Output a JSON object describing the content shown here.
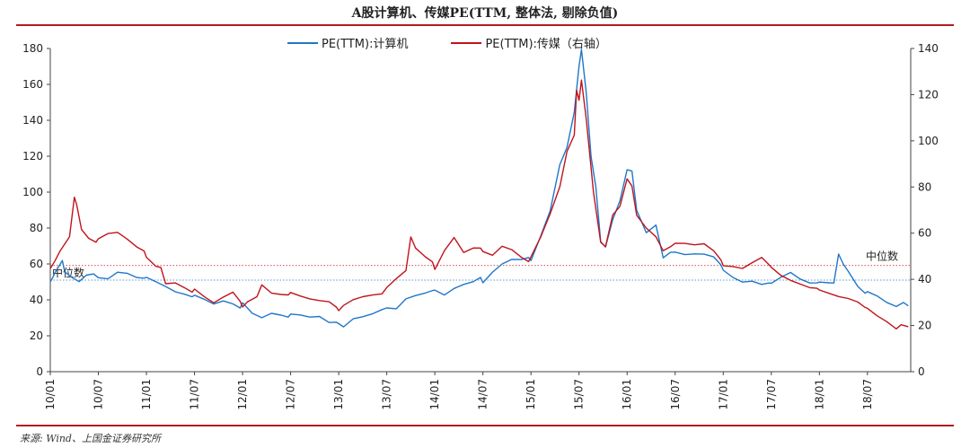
{
  "title": "A股计算机、传媒PE(TTM, 整体法, 剔除负值)",
  "source": "来源: Wind、上国金证券研究所",
  "colors": {
    "computer": "#1f77c8",
    "media": "#c0141c",
    "rule": "#b31c22"
  },
  "chart_data": {
    "type": "line",
    "title": "A股计算机、传媒PE(TTM, 整体法, 剔除负值)",
    "x": [
      "10/01",
      "10/07",
      "11/01",
      "11/07",
      "12/01",
      "12/07",
      "13/01",
      "13/07",
      "14/01",
      "14/07",
      "15/01",
      "15/07",
      "16/01",
      "16/07",
      "17/01",
      "17/07",
      "18/01",
      "18/07"
    ],
    "tick_labels": [
      "10/01",
      "10/07",
      "11/01",
      "11/07",
      "12/01",
      "12/07",
      "13/01",
      "13/07",
      "14/01",
      "14/07",
      "15/01",
      "15/07",
      "16/01",
      "16/07",
      "17/01",
      "17/07",
      "18/01",
      "18/07"
    ],
    "y_left": {
      "min": 0,
      "max": 180,
      "step": 20,
      "ticks": [
        "0",
        "20",
        "40",
        "60",
        "80",
        "100",
        "120",
        "140",
        "160",
        "180"
      ]
    },
    "y_right": {
      "min": 0,
      "max": 140,
      "step": 20,
      "ticks": [
        "0",
        "20",
        "40",
        "60",
        "80",
        "100",
        "120",
        "140"
      ]
    },
    "series": [
      {
        "name": "PE(TTM):计算机",
        "axis": "left",
        "color": "#1f77c8",
        "points": [
          [
            0.0,
            50
          ],
          [
            0.05,
            53
          ],
          [
            0.1,
            55
          ],
          [
            0.25,
            62
          ],
          [
            0.3,
            55
          ],
          [
            0.45,
            52
          ],
          [
            0.6,
            50
          ],
          [
            0.75,
            54
          ],
          [
            0.9,
            55
          ],
          [
            1.0,
            52
          ],
          [
            1.2,
            52
          ],
          [
            1.4,
            56
          ],
          [
            1.6,
            55
          ],
          [
            1.8,
            52
          ],
          [
            1.95,
            52
          ],
          [
            2.0,
            52
          ],
          [
            2.2,
            50
          ],
          [
            2.4,
            48
          ],
          [
            2.6,
            45
          ],
          [
            2.8,
            43
          ],
          [
            2.95,
            42
          ],
          [
            3.0,
            42
          ],
          [
            3.2,
            40
          ],
          [
            3.4,
            38
          ],
          [
            3.6,
            40
          ],
          [
            3.8,
            38
          ],
          [
            3.95,
            36
          ],
          [
            4.0,
            38
          ],
          [
            4.2,
            32
          ],
          [
            4.4,
            30
          ],
          [
            4.6,
            33
          ],
          [
            4.8,
            32
          ],
          [
            4.95,
            31
          ],
          [
            5.0,
            32
          ],
          [
            5.2,
            31
          ],
          [
            5.4,
            30
          ],
          [
            5.6,
            31
          ],
          [
            5.8,
            28
          ],
          [
            5.95,
            28
          ],
          [
            6.0,
            27
          ],
          [
            6.1,
            25
          ],
          [
            6.3,
            30
          ],
          [
            6.5,
            31
          ],
          [
            6.7,
            32
          ],
          [
            6.9,
            34
          ],
          [
            7.0,
            36
          ],
          [
            7.2,
            35
          ],
          [
            7.4,
            40
          ],
          [
            7.6,
            42
          ],
          [
            7.8,
            44
          ],
          [
            7.95,
            45
          ],
          [
            8.0,
            46
          ],
          [
            8.2,
            43
          ],
          [
            8.4,
            46
          ],
          [
            8.6,
            48
          ],
          [
            8.8,
            50
          ],
          [
            8.95,
            52
          ],
          [
            9.0,
            50
          ],
          [
            9.2,
            56
          ],
          [
            9.4,
            60
          ],
          [
            9.6,
            62
          ],
          [
            9.8,
            62
          ],
          [
            9.95,
            63
          ],
          [
            10.0,
            62
          ],
          [
            10.2,
            76
          ],
          [
            10.4,
            90
          ],
          [
            10.6,
            115
          ],
          [
            10.75,
            125
          ],
          [
            10.9,
            145
          ],
          [
            11.0,
            170
          ],
          [
            11.05,
            180
          ],
          [
            11.15,
            155
          ],
          [
            11.25,
            120
          ],
          [
            11.35,
            103
          ],
          [
            11.45,
            72
          ],
          [
            11.55,
            70
          ],
          [
            11.7,
            85
          ],
          [
            11.85,
            95
          ],
          [
            12.0,
            112
          ],
          [
            12.1,
            112
          ],
          [
            12.2,
            90
          ],
          [
            12.4,
            78
          ],
          [
            12.6,
            82
          ],
          [
            12.75,
            64
          ],
          [
            12.9,
            67
          ],
          [
            13.0,
            66
          ],
          [
            13.2,
            65
          ],
          [
            13.4,
            66
          ],
          [
            13.6,
            66
          ],
          [
            13.8,
            64
          ],
          [
            13.95,
            60
          ],
          [
            14.0,
            56
          ],
          [
            14.2,
            52
          ],
          [
            14.4,
            50
          ],
          [
            14.6,
            51
          ],
          [
            14.8,
            49
          ],
          [
            14.95,
            50
          ],
          [
            15.0,
            49
          ],
          [
            15.2,
            52
          ],
          [
            15.4,
            55
          ],
          [
            15.6,
            52
          ],
          [
            15.8,
            50
          ],
          [
            15.95,
            50
          ],
          [
            16.0,
            50
          ],
          [
            16.2,
            49
          ],
          [
            16.3,
            50
          ],
          [
            16.4,
            65
          ],
          [
            16.5,
            60
          ],
          [
            16.6,
            56
          ],
          [
            16.8,
            48
          ],
          [
            16.95,
            44
          ],
          [
            17.0,
            45
          ],
          [
            17.2,
            42
          ],
          [
            17.4,
            38
          ],
          [
            17.6,
            36
          ],
          [
            17.75,
            38
          ],
          [
            17.85,
            37
          ]
        ]
      },
      {
        "name": "PE(TTM):传媒（右轴）",
        "axis": "right",
        "color": "#c0141c",
        "points": [
          [
            0.0,
            45
          ],
          [
            0.1,
            48
          ],
          [
            0.2,
            52
          ],
          [
            0.4,
            58
          ],
          [
            0.5,
            76
          ],
          [
            0.55,
            72
          ],
          [
            0.65,
            62
          ],
          [
            0.8,
            58
          ],
          [
            0.95,
            56
          ],
          [
            1.0,
            58
          ],
          [
            1.2,
            60
          ],
          [
            1.4,
            60
          ],
          [
            1.6,
            57
          ],
          [
            1.8,
            54
          ],
          [
            1.95,
            52
          ],
          [
            2.0,
            50
          ],
          [
            2.2,
            46
          ],
          [
            2.3,
            45
          ],
          [
            2.4,
            38
          ],
          [
            2.6,
            38
          ],
          [
            2.8,
            36
          ],
          [
            2.95,
            34
          ],
          [
            3.0,
            36
          ],
          [
            3.2,
            33
          ],
          [
            3.4,
            30
          ],
          [
            3.6,
            32
          ],
          [
            3.8,
            34
          ],
          [
            3.95,
            30
          ],
          [
            4.0,
            28
          ],
          [
            4.1,
            30
          ],
          [
            4.3,
            32
          ],
          [
            4.4,
            38
          ],
          [
            4.6,
            34
          ],
          [
            4.8,
            33
          ],
          [
            4.95,
            33
          ],
          [
            5.0,
            34
          ],
          [
            5.2,
            33
          ],
          [
            5.4,
            32
          ],
          [
            5.6,
            31
          ],
          [
            5.8,
            30
          ],
          [
            5.95,
            28
          ],
          [
            6.0,
            26
          ],
          [
            6.1,
            29
          ],
          [
            6.3,
            31
          ],
          [
            6.5,
            32
          ],
          [
            6.7,
            33
          ],
          [
            6.9,
            34
          ],
          [
            7.0,
            36
          ],
          [
            7.2,
            40
          ],
          [
            7.4,
            44
          ],
          [
            7.5,
            58
          ],
          [
            7.6,
            54
          ],
          [
            7.8,
            50
          ],
          [
            7.95,
            48
          ],
          [
            8.0,
            44
          ],
          [
            8.2,
            52
          ],
          [
            8.4,
            58
          ],
          [
            8.6,
            52
          ],
          [
            8.8,
            54
          ],
          [
            8.95,
            54
          ],
          [
            9.0,
            52
          ],
          [
            9.2,
            50
          ],
          [
            9.4,
            54
          ],
          [
            9.6,
            53
          ],
          [
            9.8,
            50
          ],
          [
            9.95,
            48
          ],
          [
            10.0,
            50
          ],
          [
            10.2,
            58
          ],
          [
            10.4,
            68
          ],
          [
            10.6,
            80
          ],
          [
            10.75,
            95
          ],
          [
            10.9,
            102
          ],
          [
            10.95,
            122
          ],
          [
            11.0,
            118
          ],
          [
            11.05,
            126
          ],
          [
            11.15,
            110
          ],
          [
            11.3,
            78
          ],
          [
            11.45,
            56
          ],
          [
            11.55,
            54
          ],
          [
            11.7,
            68
          ],
          [
            11.85,
            72
          ],
          [
            12.0,
            84
          ],
          [
            12.1,
            80
          ],
          [
            12.2,
            68
          ],
          [
            12.4,
            62
          ],
          [
            12.6,
            58
          ],
          [
            12.75,
            52
          ],
          [
            12.9,
            54
          ],
          [
            13.0,
            56
          ],
          [
            13.2,
            56
          ],
          [
            13.4,
            55
          ],
          [
            13.6,
            55
          ],
          [
            13.8,
            52
          ],
          [
            13.95,
            48
          ],
          [
            14.0,
            46
          ],
          [
            14.2,
            46
          ],
          [
            14.4,
            45
          ],
          [
            14.6,
            47
          ],
          [
            14.8,
            49
          ],
          [
            14.95,
            46
          ],
          [
            15.0,
            45
          ],
          [
            15.2,
            42
          ],
          [
            15.4,
            40
          ],
          [
            15.6,
            38
          ],
          [
            15.8,
            36
          ],
          [
            15.95,
            36
          ],
          [
            16.0,
            35
          ],
          [
            16.2,
            34
          ],
          [
            16.4,
            33
          ],
          [
            16.6,
            32
          ],
          [
            16.8,
            30
          ],
          [
            16.95,
            28
          ],
          [
            17.0,
            27
          ],
          [
            17.2,
            24
          ],
          [
            17.4,
            22
          ],
          [
            17.6,
            19
          ],
          [
            17.7,
            20
          ],
          [
            17.85,
            19
          ]
        ]
      }
    ],
    "medians": [
      {
        "label": "中位数",
        "axis": "right",
        "value": 46,
        "color": "#c0141c"
      },
      {
        "label": "中位数",
        "axis": "left",
        "value": 51,
        "color": "#1f77c8"
      }
    ]
  }
}
